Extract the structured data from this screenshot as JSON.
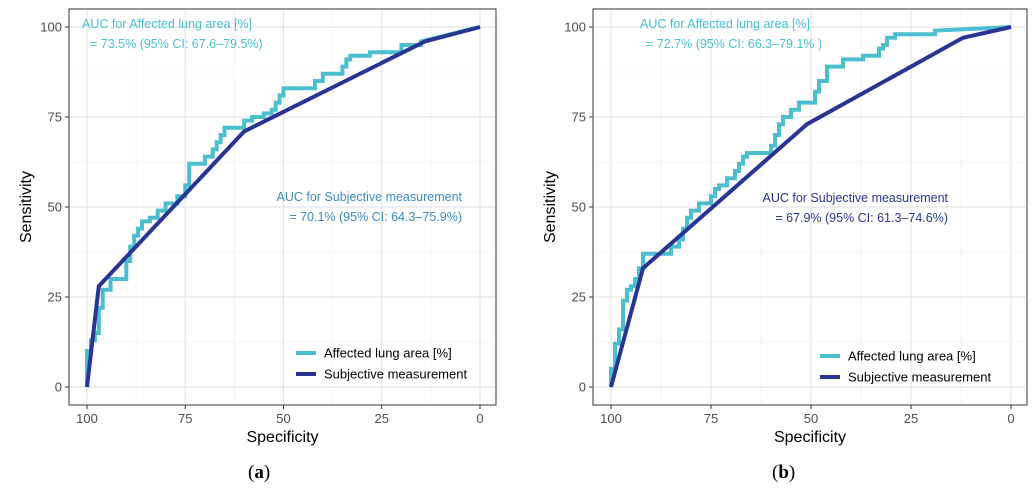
{
  "chart_data": [
    {
      "type": "line",
      "panel_label": "(a)",
      "panel_letter": "a",
      "xlabel": "Specificity",
      "ylabel": "Sensitivity",
      "xlim": [
        100,
        0
      ],
      "ylim": [
        0,
        100
      ],
      "xticks": [
        "100",
        "75",
        "50",
        "25",
        "0"
      ],
      "yticks": [
        "0",
        "25",
        "50",
        "75",
        "100"
      ],
      "grid": true,
      "legend_position": "bottom-right",
      "annotations": [
        {
          "lines": [
            "AUC for Affected lung area [%]",
            "= 73.5% (95% CI: 67.6–79.5%)"
          ],
          "color": "#4bbfd0"
        },
        {
          "lines": [
            "AUC for Subjective measurement",
            "= 70.1% (95% CI: 64.3–75.9%)"
          ],
          "color": "#3a8bc2"
        }
      ],
      "series": [
        {
          "name": "Affected lung area [%]",
          "color": "#4bbfd0",
          "points": [
            [
              100,
              0
            ],
            [
              100,
              10
            ],
            [
              99,
              10
            ],
            [
              99,
              13
            ],
            [
              98,
              13
            ],
            [
              98,
              15
            ],
            [
              97,
              15
            ],
            [
              97,
              22
            ],
            [
              96,
              22
            ],
            [
              96,
              27
            ],
            [
              94,
              27
            ],
            [
              94,
              30
            ],
            [
              90,
              30
            ],
            [
              90,
              35
            ],
            [
              89,
              35
            ],
            [
              89,
              39
            ],
            [
              88,
              39
            ],
            [
              88,
              42
            ],
            [
              87,
              42
            ],
            [
              87,
              44
            ],
            [
              86,
              44
            ],
            [
              86,
              46
            ],
            [
              84,
              46
            ],
            [
              84,
              47
            ],
            [
              82,
              47
            ],
            [
              82,
              49
            ],
            [
              80,
              49
            ],
            [
              80,
              51
            ],
            [
              77,
              51
            ],
            [
              77,
              53
            ],
            [
              75,
              53
            ],
            [
              75,
              56
            ],
            [
              74,
              56
            ],
            [
              74,
              62
            ],
            [
              70,
              62
            ],
            [
              70,
              64
            ],
            [
              68,
              64
            ],
            [
              68,
              66
            ],
            [
              67,
              66
            ],
            [
              67,
              68
            ],
            [
              66,
              68
            ],
            [
              66,
              70
            ],
            [
              65,
              70
            ],
            [
              65,
              72
            ],
            [
              60,
              72
            ],
            [
              60,
              74
            ],
            [
              58,
              74
            ],
            [
              58,
              75
            ],
            [
              55,
              75
            ],
            [
              55,
              76
            ],
            [
              53,
              76
            ],
            [
              53,
              77
            ],
            [
              52,
              77
            ],
            [
              52,
              79
            ],
            [
              51,
              79
            ],
            [
              51,
              81
            ],
            [
              50,
              81
            ],
            [
              50,
              83
            ],
            [
              42,
              83
            ],
            [
              42,
              85
            ],
            [
              40,
              85
            ],
            [
              40,
              87
            ],
            [
              35,
              87
            ],
            [
              35,
              89
            ],
            [
              34,
              89
            ],
            [
              34,
              91
            ],
            [
              33,
              91
            ],
            [
              33,
              92
            ],
            [
              28,
              92
            ],
            [
              28,
              93
            ],
            [
              20,
              93
            ],
            [
              20,
              95
            ],
            [
              15,
              95
            ],
            [
              15,
              96
            ],
            [
              0,
              100
            ]
          ]
        },
        {
          "name": "Subjective measurement",
          "color": "#283593",
          "points": [
            [
              100,
              0
            ],
            [
              97,
              28
            ],
            [
              60,
              71
            ],
            [
              14,
              96
            ],
            [
              0,
              100
            ]
          ]
        }
      ]
    },
    {
      "type": "line",
      "panel_label": "(b)",
      "panel_letter": "b",
      "xlabel": "Specificity",
      "ylabel": "Sensitivity",
      "xlim": [
        100,
        0
      ],
      "ylim": [
        0,
        100
      ],
      "xticks": [
        "100",
        "75",
        "50",
        "25",
        "0"
      ],
      "yticks": [
        "0",
        "25",
        "50",
        "75",
        "100"
      ],
      "grid": true,
      "legend_position": "bottom-right",
      "annotations": [
        {
          "lines": [
            "AUC for Affected lung area [%]",
            "= 72.7% (95% CI: 66.3–79.1% )"
          ],
          "color": "#4bbfd0"
        },
        {
          "lines": [
            "AUC for Subjective measurement",
            "= 67.9% (95% CI: 61.3–74.6%)"
          ],
          "color": "#283593"
        }
      ],
      "series": [
        {
          "name": "Affected lung area [%]",
          "color": "#4bbfd0",
          "points": [
            [
              100,
              0
            ],
            [
              100,
              5
            ],
            [
              99,
              5
            ],
            [
              99,
              12
            ],
            [
              98,
              12
            ],
            [
              98,
              16
            ],
            [
              97,
              16
            ],
            [
              97,
              24
            ],
            [
              96,
              24
            ],
            [
              96,
              27
            ],
            [
              95,
              27
            ],
            [
              95,
              28
            ],
            [
              94,
              28
            ],
            [
              94,
              30
            ],
            [
              93,
              30
            ],
            [
              93,
              33
            ],
            [
              92,
              33
            ],
            [
              92,
              37
            ],
            [
              85,
              37
            ],
            [
              85,
              39
            ],
            [
              83,
              39
            ],
            [
              83,
              41
            ],
            [
              82,
              41
            ],
            [
              82,
              44
            ],
            [
              81,
              44
            ],
            [
              81,
              47
            ],
            [
              80,
              47
            ],
            [
              80,
              49
            ],
            [
              78,
              49
            ],
            [
              78,
              51
            ],
            [
              75,
              51
            ],
            [
              75,
              53
            ],
            [
              74,
              53
            ],
            [
              74,
              55
            ],
            [
              73,
              55
            ],
            [
              73,
              56
            ],
            [
              71,
              56
            ],
            [
              71,
              58
            ],
            [
              69,
              58
            ],
            [
              69,
              60
            ],
            [
              68,
              60
            ],
            [
              68,
              62
            ],
            [
              67,
              62
            ],
            [
              67,
              64
            ],
            [
              66,
              64
            ],
            [
              66,
              65
            ],
            [
              60,
              65
            ],
            [
              60,
              67
            ],
            [
              59,
              67
            ],
            [
              59,
              70
            ],
            [
              58,
              70
            ],
            [
              58,
              73
            ],
            [
              57,
              73
            ],
            [
              57,
              75
            ],
            [
              55,
              75
            ],
            [
              55,
              77
            ],
            [
              53,
              77
            ],
            [
              53,
              79
            ],
            [
              49,
              79
            ],
            [
              49,
              82
            ],
            [
              48,
              82
            ],
            [
              48,
              85
            ],
            [
              46,
              85
            ],
            [
              46,
              89
            ],
            [
              42,
              89
            ],
            [
              42,
              91
            ],
            [
              37,
              91
            ],
            [
              37,
              92
            ],
            [
              33,
              92
            ],
            [
              33,
              94
            ],
            [
              32,
              94
            ],
            [
              32,
              95
            ],
            [
              31,
              95
            ],
            [
              31,
              97
            ],
            [
              29,
              97
            ],
            [
              29,
              98
            ],
            [
              19,
              98
            ],
            [
              19,
              99
            ],
            [
              0,
              100
            ]
          ]
        },
        {
          "name": "Subjective measurement",
          "color": "#283593",
          "points": [
            [
              100,
              0
            ],
            [
              92,
              33
            ],
            [
              51,
              73
            ],
            [
              12,
              97
            ],
            [
              0,
              100
            ]
          ]
        }
      ]
    }
  ]
}
